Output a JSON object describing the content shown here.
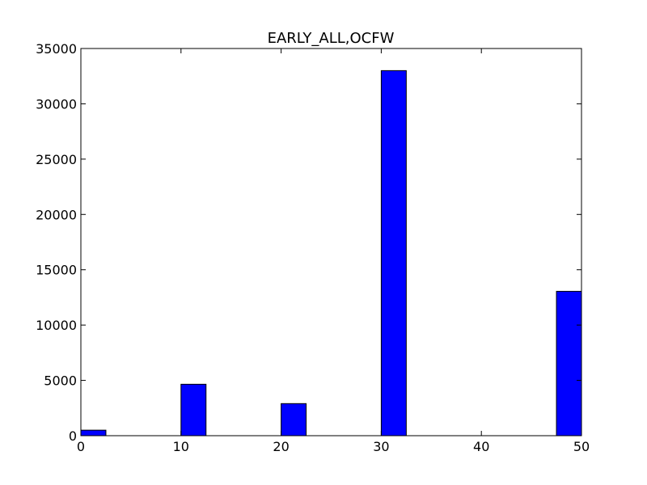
{
  "chart_data": {
    "type": "bar",
    "title": "EARLY_ALL,OCFW",
    "xlabel": "",
    "ylabel": "",
    "xlim": [
      0,
      50
    ],
    "ylim": [
      0,
      35000
    ],
    "x_ticks": [
      0,
      10,
      20,
      30,
      40,
      50
    ],
    "y_ticks": [
      0,
      5000,
      10000,
      15000,
      20000,
      25000,
      30000,
      35000
    ],
    "grid": false,
    "bar_color": "#0000ff",
    "bar_edge_color": "#000000",
    "bars": [
      {
        "x_start": 0,
        "x_end": 2.5,
        "value": 500
      },
      {
        "x_start": 10,
        "x_end": 12.5,
        "value": 4650
      },
      {
        "x_start": 20,
        "x_end": 22.5,
        "value": 2900
      },
      {
        "x_start": 30,
        "x_end": 32.5,
        "value": 33000
      },
      {
        "x_start": 47.5,
        "x_end": 50,
        "value": 13050
      }
    ]
  }
}
